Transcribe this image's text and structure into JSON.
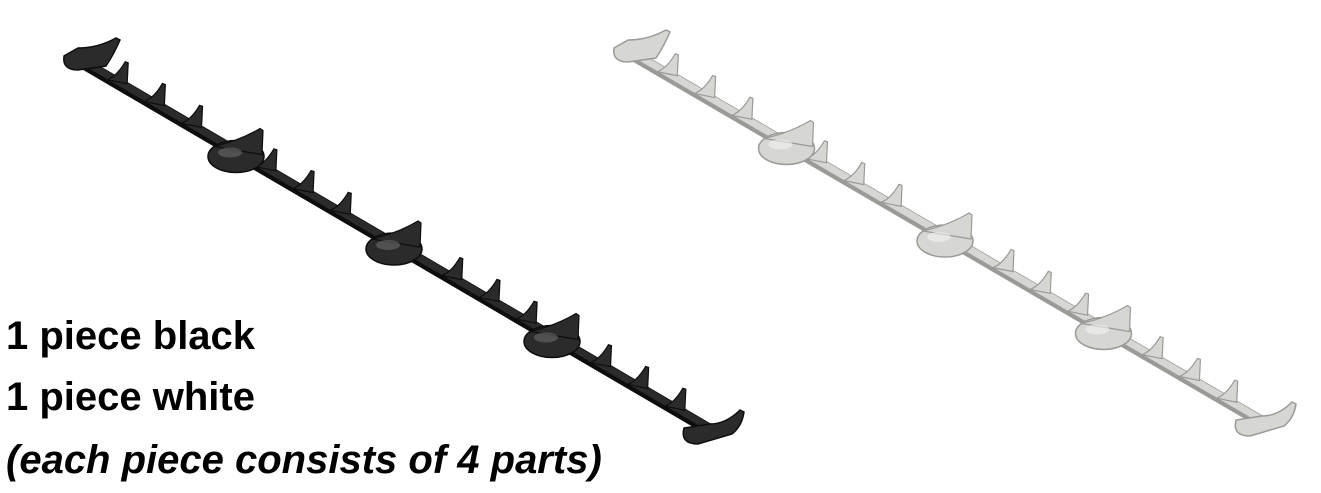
{
  "captions": {
    "black": "1 piece black",
    "white": "1 piece white",
    "note": "(each piece consists of 4 parts)"
  },
  "pieces": [
    {
      "name": "black-piece",
      "fill": "#2b2b2b",
      "edge": "#0d0d0d",
      "highlight": "#6a6a6a"
    },
    {
      "name": "white-piece",
      "fill": "#d6d6d3",
      "edge": "#9a9a97",
      "highlight": "#f2f2f0"
    }
  ]
}
